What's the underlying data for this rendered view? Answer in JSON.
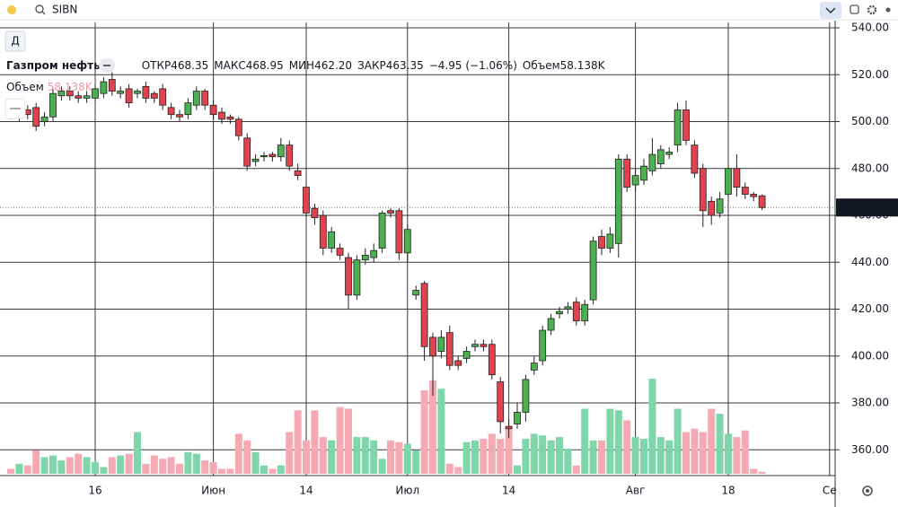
{
  "toolbar": {
    "symbol": "SIBN",
    "interval": "Д"
  },
  "legend": {
    "name": "Газпром нефть",
    "items": [
      {
        "label": "ОТКР",
        "value": "468.35"
      },
      {
        "label": "МАКС",
        "value": "468.95"
      },
      {
        "label": "МИН",
        "value": "462.20"
      },
      {
        "label": "ЗАКР",
        "value": "463.35"
      }
    ],
    "change": "−4.95 (−1.06%)",
    "volume_label": "Объем",
    "volume_value": "58.138K"
  },
  "chart_data": {
    "type": "candlestick",
    "categories": [
      null,
      null,
      null,
      null,
      null,
      null,
      null,
      null,
      null,
      null,
      "16",
      null,
      null,
      null,
      null,
      null,
      null,
      null,
      null,
      null,
      null,
      null,
      null,
      null,
      "Июн",
      null,
      null,
      null,
      null,
      null,
      null,
      null,
      null,
      null,
      null,
      "14",
      null,
      null,
      null,
      null,
      null,
      null,
      null,
      null,
      null,
      null,
      null,
      "Июл",
      null,
      null,
      null,
      null,
      null,
      null,
      null,
      null,
      null,
      null,
      null,
      "14",
      null,
      null,
      null,
      null,
      null,
      null,
      null,
      null,
      null,
      null,
      null,
      null,
      null,
      null,
      "Авг",
      null,
      null,
      null,
      null,
      null,
      null,
      null,
      null,
      null,
      null,
      "18",
      null,
      null,
      null,
      null,
      null,
      null,
      null,
      null,
      null,
      null,
      null,
      "Се"
    ],
    "open": [
      503,
      502,
      505,
      506,
      500,
      502,
      511,
      513,
      511,
      510,
      510,
      512,
      518,
      512,
      514,
      512,
      515,
      512,
      514,
      506,
      503,
      503,
      507,
      513,
      507,
      504,
      502,
      501,
      493,
      483,
      485,
      486,
      485,
      490,
      479,
      472,
      463,
      460,
      446,
      446,
      442,
      426,
      441,
      442,
      446,
      462,
      462,
      444,
      426,
      431,
      408,
      402,
      410,
      398,
      399,
      404,
      405,
      405,
      389,
      370,
      371,
      376,
      394,
      398,
      411,
      418,
      420,
      423,
      415,
      424,
      451,
      446,
      448,
      484,
      473,
      475,
      479,
      482,
      486,
      490,
      505,
      490,
      480,
      466,
      461,
      469,
      480,
      472,
      469,
      468.35,
      null,
      null,
      null,
      null,
      null,
      null,
      null,
      null
    ],
    "high": [
      505,
      507,
      507,
      508,
      504,
      514,
      515,
      515,
      513,
      513,
      516,
      519,
      521,
      515,
      516,
      514,
      517,
      513,
      516,
      508,
      505,
      510,
      515,
      514,
      509,
      506,
      503,
      502,
      495,
      486,
      487,
      487,
      493,
      492,
      482,
      474,
      465,
      462,
      455,
      448,
      444,
      443,
      446,
      448,
      462,
      463,
      463,
      456,
      430,
      432,
      410,
      411,
      413,
      400,
      404,
      407,
      407,
      407,
      391,
      373,
      380,
      392,
      400,
      413,
      418,
      421,
      423,
      425,
      424,
      451,
      454,
      455,
      486,
      486,
      480,
      484,
      493,
      490,
      489,
      508,
      509,
      492,
      482,
      468,
      470,
      481,
      486,
      474,
      470,
      468.95,
      null,
      null,
      null,
      null,
      null,
      null,
      null,
      null
    ],
    "low": [
      501,
      500,
      501,
      496,
      498,
      500,
      509,
      509,
      508,
      508,
      508,
      510,
      511,
      510,
      506,
      510,
      508,
      508,
      505,
      501,
      500,
      501,
      505,
      505,
      501,
      499,
      499,
      492,
      479,
      481,
      483,
      483,
      483,
      479,
      475,
      459,
      456,
      443,
      444,
      441,
      420,
      424,
      439,
      440,
      444,
      459,
      441,
      440,
      424,
      398,
      383,
      399,
      394,
      394,
      397,
      402,
      402,
      390,
      367,
      365,
      369,
      372,
      392,
      396,
      409,
      416,
      418,
      413,
      413,
      422,
      443,
      444,
      442,
      470,
      470,
      473,
      477,
      480,
      484,
      487,
      490,
      476,
      455,
      456,
      459,
      466,
      468,
      467,
      466,
      462.2,
      null,
      null,
      null,
      null,
      null,
      null,
      null,
      null
    ],
    "close": [
      502,
      505,
      503,
      498,
      502,
      512,
      513,
      511,
      510,
      511,
      514,
      517,
      513,
      513,
      508,
      513,
      510,
      510,
      507,
      503,
      502,
      508,
      513,
      507,
      503,
      501,
      501,
      494,
      481,
      484,
      485.5,
      485,
      490,
      481,
      477,
      461,
      459,
      446,
      453,
      443,
      426,
      441,
      443,
      445,
      461,
      461,
      444,
      454,
      428,
      404,
      400,
      408,
      396,
      396,
      402,
      405,
      404,
      392,
      372,
      369,
      376,
      390,
      397,
      411,
      416,
      419,
      421,
      415,
      422,
      449,
      446,
      452,
      484,
      472,
      477,
      481,
      486,
      488,
      487,
      505,
      492,
      478,
      462,
      460,
      467,
      480,
      472,
      469,
      468,
      463.35,
      null,
      null,
      null,
      null,
      null,
      null,
      null,
      null
    ],
    "volume": [
      150,
      300,
      250,
      700,
      500,
      550,
      400,
      500,
      600,
      500,
      350,
      200,
      500,
      550,
      600,
      1250,
      300,
      550,
      450,
      500,
      300,
      650,
      600,
      400,
      350,
      150,
      150,
      1200,
      1000,
      650,
      250,
      150,
      250,
      1250,
      1900,
      1000,
      1900,
      1100,
      1000,
      2000,
      1950,
      1100,
      1100,
      1000,
      450,
      1000,
      950,
      900,
      700,
      2500,
      2800,
      2550,
      300,
      200,
      950,
      1000,
      1050,
      1200,
      1050,
      1400,
      250,
      1050,
      1200,
      1150,
      1000,
      1100,
      750,
      250,
      1950,
      1000,
      1000,
      1950,
      1900,
      1600,
      1100,
      1050,
      2850,
      1100,
      1000,
      1950,
      1250,
      1350,
      1250,
      1950,
      1800,
      1200,
      1100,
      1300,
      150,
      58.138,
      null,
      null,
      null,
      null,
      null,
      null,
      null,
      null
    ],
    "up_color": "#4caf50",
    "down_color": "#e0434d",
    "volume_up_color": "#7fd6aa",
    "volume_down_color": "#f5a9b3",
    "ylim": [
      349,
      542.3
    ],
    "yticks": [
      {
        "value": 360,
        "label": "360.00"
      },
      {
        "value": 380,
        "label": "380.00"
      },
      {
        "value": 400,
        "label": "400.00"
      },
      {
        "value": 420,
        "label": "420.00"
      },
      {
        "value": 440,
        "label": "440.00"
      },
      {
        "value": 460,
        "label": "460.00"
      },
      {
        "value": 480,
        "label": "480.00"
      },
      {
        "value": 500,
        "label": "500.00"
      },
      {
        "value": 520,
        "label": "520.00"
      },
      {
        "value": 540,
        "label": "540.00"
      }
    ],
    "grid": true
  }
}
